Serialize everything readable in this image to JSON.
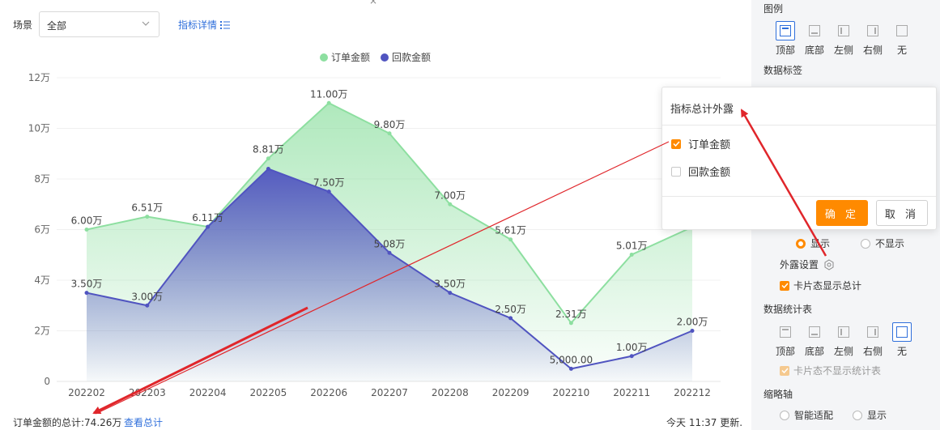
{
  "filter": {
    "scene_label": "场景",
    "scene_value": "全部",
    "detail_link": "指标详情"
  },
  "chart_data": {
    "type": "area",
    "legend_position": "top",
    "categories": [
      "202202",
      "202203",
      "202204",
      "202205",
      "202206",
      "202207",
      "202208",
      "202209",
      "202210",
      "202211",
      "202212"
    ],
    "y_ticks": [
      "0",
      "2万",
      "4万",
      "6万",
      "8万",
      "10万",
      "12万"
    ],
    "ylim": [
      0,
      12
    ],
    "series": [
      {
        "name": "订单金额",
        "color": "#8ddfa0",
        "values": [
          6.0,
          6.51,
          6.11,
          8.81,
          11.0,
          9.8,
          7.0,
          5.61,
          2.31,
          5.01,
          6.1
        ],
        "labels": [
          "6.00万",
          "6.51万",
          "6.11万",
          "8.81万",
          "11.00万",
          "9.80万",
          "7.00万",
          "5.61万",
          "2.31万",
          "5.01万",
          ""
        ]
      },
      {
        "name": "回款金额",
        "color": "#5054c0",
        "values": [
          3.5,
          3.0,
          6.11,
          8.4,
          7.5,
          5.08,
          3.5,
          2.5,
          0.5,
          1.0,
          2.0
        ],
        "labels": [
          "3.50万",
          "3.00万",
          "",
          "",
          "7.50万",
          "5.08万",
          "3.50万",
          "2.50万",
          "5,000.00",
          "1.00万",
          "2.00万"
        ]
      }
    ]
  },
  "footer": {
    "total": "订单金额的总计:74.26万",
    "view_total": "查看总计",
    "updated": "今天 11:37 更新."
  },
  "panel": {
    "legend_title": "图例",
    "legend_positions": [
      "顶部",
      "底部",
      "左侧",
      "右侧",
      "无"
    ],
    "data_label_title": "数据标签",
    "show": "显示",
    "hide": "不显示",
    "expose_settings": "外露设置",
    "card_show_total": "卡片态显示总计",
    "stats_title": "数据统计表",
    "stats_positions": [
      "顶部",
      "底部",
      "左侧",
      "右侧",
      "无"
    ],
    "card_hide_stats": "卡片态不显示统计表",
    "thumb_title": "缩略轴",
    "auto_fit": "智能适配",
    "thumb_show": "显示"
  },
  "popup": {
    "title": "指标总计外露",
    "options": [
      {
        "label": "订单金额",
        "checked": true
      },
      {
        "label": "回款金额",
        "checked": false
      }
    ],
    "confirm": "确 定",
    "cancel": "取 消"
  },
  "colors": {
    "accent": "#ff8a00",
    "link": "#2f6fdb",
    "annotation_arrow": "#e0262b"
  }
}
